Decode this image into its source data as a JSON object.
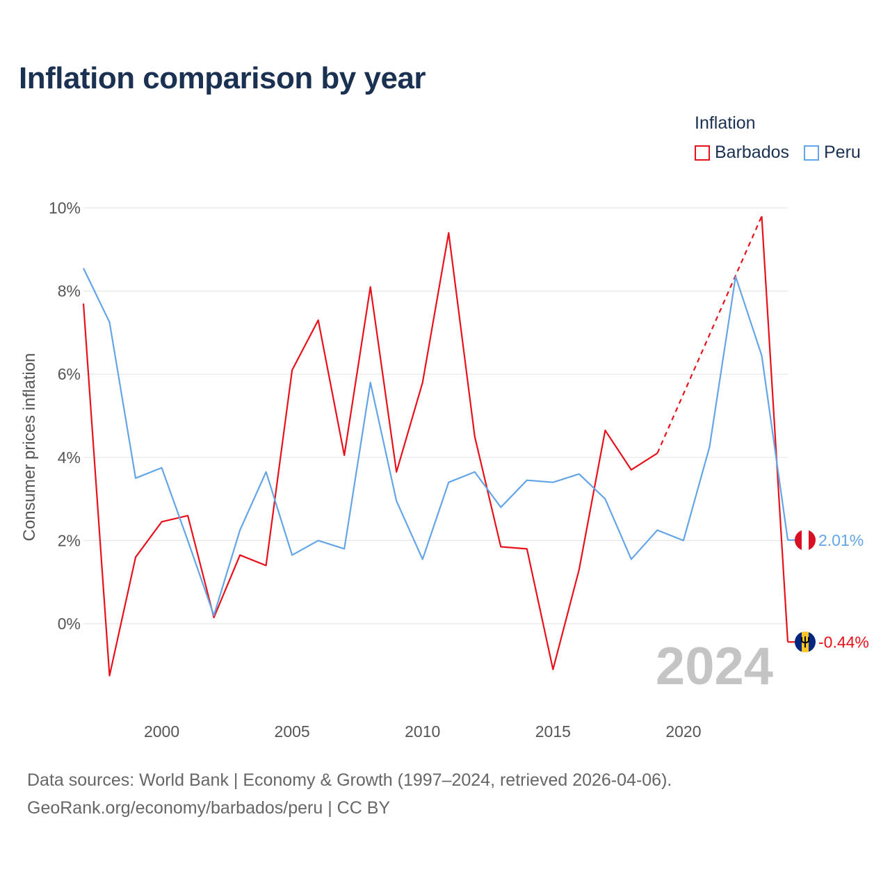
{
  "title": "Inflation comparison by year",
  "legend": {
    "title": "Inflation",
    "items": [
      {
        "label": "Barbados",
        "color": "#e8101a"
      },
      {
        "label": "Peru",
        "color": "#63a5e6"
      }
    ]
  },
  "source": {
    "line1": "Data sources: World Bank | Economy & Growth (1997–2024, retrieved 2026-04-06).",
    "line2": "GeoRank.org/economy/barbados/peru | CC BY"
  },
  "chart_data": {
    "type": "line",
    "title": "Inflation comparison by year",
    "xlabel": "",
    "ylabel": "Consumer prices inflation",
    "year_watermark": "2024",
    "xlim": [
      1997,
      2024
    ],
    "ylim": [
      -1.8,
      10
    ],
    "x_ticks": [
      2000,
      2005,
      2010,
      2015,
      2020
    ],
    "y_ticks": [
      {
        "value": 0,
        "label": "0%"
      },
      {
        "value": 2,
        "label": "2%"
      },
      {
        "value": 4,
        "label": "4%"
      },
      {
        "value": 6,
        "label": "6%"
      },
      {
        "value": 8,
        "label": "8%"
      },
      {
        "value": 10,
        "label": "10%"
      }
    ],
    "x": [
      1997,
      1998,
      1999,
      2000,
      2001,
      2002,
      2003,
      2004,
      2005,
      2006,
      2007,
      2008,
      2009,
      2010,
      2011,
      2012,
      2013,
      2014,
      2015,
      2016,
      2017,
      2018,
      2019,
      2020,
      2021,
      2022,
      2023,
      2024
    ],
    "series": [
      {
        "name": "Barbados",
        "color": "#e8101a",
        "values": [
          7.7,
          -1.25,
          1.6,
          2.45,
          2.6,
          0.15,
          1.65,
          1.4,
          6.1,
          7.3,
          4.05,
          8.1,
          3.65,
          5.8,
          9.4,
          4.5,
          1.85,
          1.8,
          -1.1,
          1.3,
          4.65,
          3.7,
          4.1,
          null,
          null,
          null,
          9.8,
          -0.44
        ],
        "gap_years": [
          2020,
          2021,
          2022
        ],
        "end_label": "-0.44%",
        "flag": "barbados-flag"
      },
      {
        "name": "Peru",
        "color": "#63a5e6",
        "values": [
          8.55,
          7.25,
          3.5,
          3.75,
          2.0,
          0.2,
          2.25,
          3.65,
          1.65,
          2.0,
          1.8,
          5.8,
          2.95,
          1.55,
          3.4,
          3.65,
          2.8,
          3.45,
          3.4,
          3.6,
          3.0,
          1.55,
          2.25,
          2.0,
          4.25,
          8.35,
          6.45,
          2.01
        ],
        "end_label": "2.01%",
        "flag": "peru-flag"
      }
    ]
  }
}
